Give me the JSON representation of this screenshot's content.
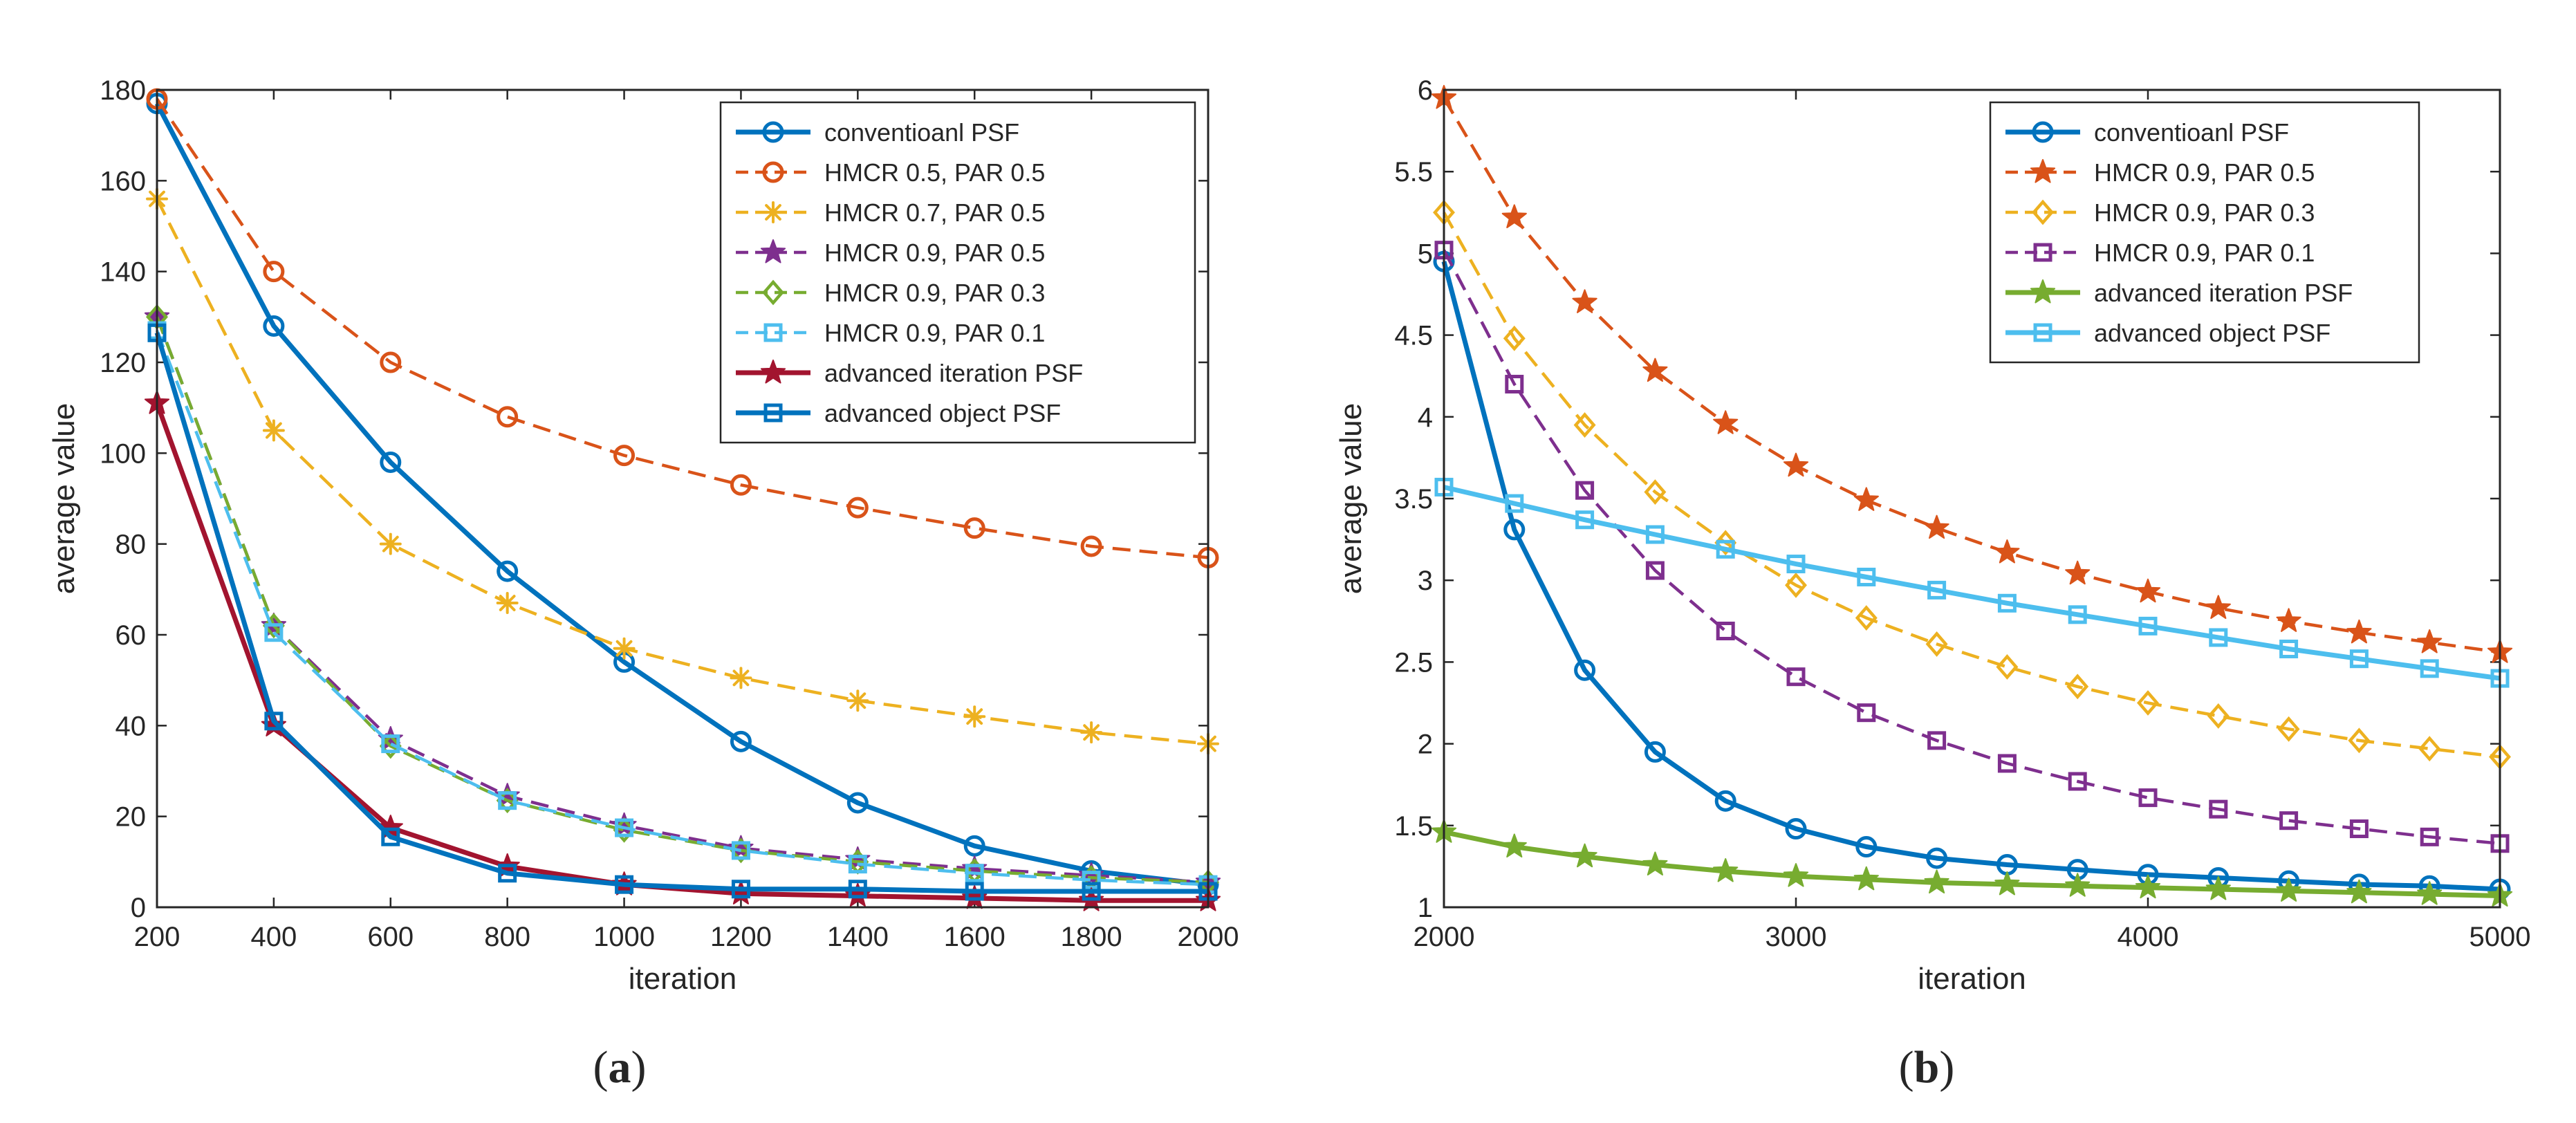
{
  "figure_labels": {
    "a": {
      "open": "(",
      "letter": "a",
      "close": ")"
    },
    "b": {
      "open": "(",
      "letter": "b",
      "close": ")"
    }
  },
  "chart_data": [
    {
      "id": "a",
      "type": "line",
      "xlabel": "iteration",
      "ylabel": "average value",
      "xlim": [
        200,
        2000
      ],
      "ylim": [
        0,
        180
      ],
      "xticks": [
        200,
        400,
        600,
        800,
        1000,
        1200,
        1400,
        1600,
        1800,
        2000
      ],
      "yticks": [
        0,
        20,
        40,
        60,
        80,
        100,
        120,
        140,
        160,
        180
      ],
      "legend_position": "top-right",
      "x": [
        200,
        400,
        600,
        800,
        1000,
        1200,
        1400,
        1600,
        1800,
        2000
      ],
      "series": [
        {
          "name": "conventioanl PSF",
          "color": "#0072BD",
          "dash": "solid",
          "marker": "circle",
          "values": [
            177,
            128,
            98,
            74,
            54,
            36.5,
            23,
            13.5,
            8,
            5
          ]
        },
        {
          "name": "HMCR 0.5, PAR 0.5",
          "color": "#D95319",
          "dash": "dashed",
          "marker": "circle",
          "values": [
            178,
            140,
            120,
            108,
            99.5,
            93,
            88,
            83.5,
            79.5,
            77
          ]
        },
        {
          "name": "HMCR 0.7, PAR 0.5",
          "color": "#EDB120",
          "dash": "dashed",
          "marker": "asterisk",
          "values": [
            156,
            105,
            80,
            67,
            57,
            50.5,
            45.5,
            42,
            38.5,
            36
          ]
        },
        {
          "name": "HMCR 0.9, PAR 0.5",
          "color": "#7E2F8E",
          "dash": "dashed",
          "marker": "star",
          "values": [
            130,
            62,
            37,
            24.5,
            18,
            13,
            10.5,
            8.5,
            7,
            5.5
          ]
        },
        {
          "name": "HMCR 0.9, PAR 0.3",
          "color": "#77AC30",
          "dash": "dashed",
          "marker": "diamond",
          "values": [
            130,
            62,
            35.5,
            23.5,
            17,
            12.5,
            10,
            8,
            6.5,
            5.5
          ]
        },
        {
          "name": "HMCR 0.9, PAR 0.1",
          "color": "#4DBEEE",
          "dash": "dashed",
          "marker": "square",
          "values": [
            127,
            60.5,
            36,
            23.5,
            17.5,
            12.5,
            9.5,
            7.5,
            6,
            5
          ]
        },
        {
          "name": "advanced iteration PSF",
          "color": "#A2142F",
          "dash": "solid",
          "marker": "star",
          "values": [
            111,
            40,
            17.5,
            9,
            5,
            3,
            2.5,
            2,
            1.5,
            1.5
          ]
        },
        {
          "name": "advanced object PSF",
          "color": "#0072BD",
          "dash": "solid",
          "marker": "square",
          "values": [
            126.5,
            41,
            15.5,
            7.5,
            5,
            4,
            4,
            3.5,
            3.5,
            3.5
          ]
        }
      ]
    },
    {
      "id": "b",
      "type": "line",
      "xlabel": "iteration",
      "ylabel": "average value",
      "xlim": [
        2000,
        5000
      ],
      "ylim": [
        1,
        6
      ],
      "xticks": [
        2000,
        3000,
        4000,
        5000
      ],
      "yticks": [
        1,
        1.5,
        2,
        2.5,
        3,
        3.5,
        4,
        4.5,
        5,
        5.5,
        6
      ],
      "legend_position": "top-right",
      "x": [
        2000,
        2200,
        2400,
        2600,
        2800,
        3000,
        3200,
        3400,
        3600,
        3800,
        4000,
        4200,
        4400,
        4600,
        4800,
        5000
      ],
      "series": [
        {
          "name": "conventioanl PSF",
          "color": "#0072BD",
          "dash": "solid",
          "marker": "circle",
          "values": [
            4.95,
            3.31,
            2.45,
            1.95,
            1.65,
            1.48,
            1.37,
            1.3,
            1.26,
            1.23,
            1.2,
            1.18,
            1.16,
            1.14,
            1.13,
            1.11
          ]
        },
        {
          "name": "HMCR 0.9, PAR 0.5",
          "color": "#D95319",
          "dash": "dashed",
          "marker": "star",
          "values": [
            5.95,
            5.22,
            4.7,
            4.28,
            3.96,
            3.7,
            3.49,
            3.32,
            3.17,
            3.04,
            2.93,
            2.83,
            2.75,
            2.68,
            2.62,
            2.56
          ]
        },
        {
          "name": "HMCR 0.9, PAR 0.3",
          "color": "#EDB120",
          "dash": "dashed",
          "marker": "diamond",
          "values": [
            5.25,
            4.48,
            3.95,
            3.54,
            3.23,
            2.97,
            2.77,
            2.61,
            2.47,
            2.35,
            2.25,
            2.17,
            2.09,
            2.02,
            1.97,
            1.92
          ]
        },
        {
          "name": "HMCR 0.9, PAR 0.1",
          "color": "#7E2F8E",
          "dash": "dashed",
          "marker": "square",
          "values": [
            5.02,
            4.2,
            3.55,
            3.06,
            2.69,
            2.41,
            2.19,
            2.02,
            1.88,
            1.77,
            1.67,
            1.6,
            1.53,
            1.48,
            1.43,
            1.39
          ]
        },
        {
          "name": "advanced iteration PSF",
          "color": "#77AC30",
          "dash": "solid",
          "marker": "star",
          "values": [
            1.46,
            1.37,
            1.31,
            1.26,
            1.22,
            1.19,
            1.17,
            1.15,
            1.14,
            1.13,
            1.12,
            1.11,
            1.1,
            1.09,
            1.08,
            1.07
          ]
        },
        {
          "name": "advanced object PSF",
          "color": "#4DBEEE",
          "dash": "solid",
          "marker": "square",
          "values": [
            3.57,
            3.47,
            3.37,
            3.28,
            3.19,
            3.1,
            3.02,
            2.94,
            2.86,
            2.79,
            2.72,
            2.65,
            2.58,
            2.52,
            2.46,
            2.4
          ]
        }
      ]
    }
  ]
}
